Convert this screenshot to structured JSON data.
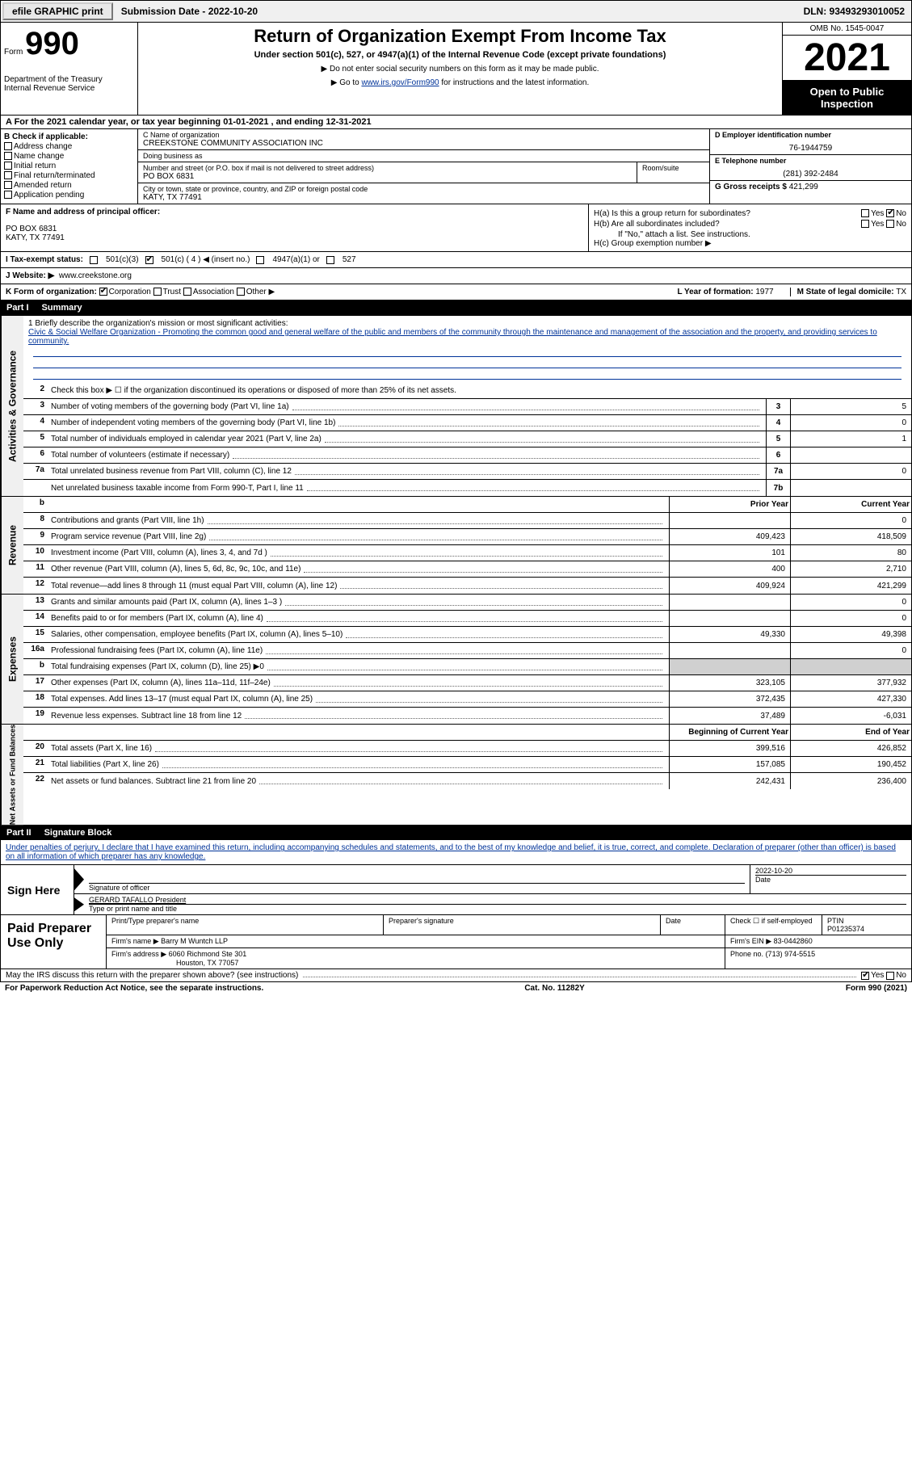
{
  "topbar": {
    "efile": "efile GRAPHIC print",
    "sub_date_label": "Submission Date - 2022-10-20",
    "dln": "DLN: 93493293010052"
  },
  "header": {
    "form_word": "Form",
    "form_num": "990",
    "dept": "Department of the Treasury\nInternal Revenue Service",
    "title": "Return of Organization Exempt From Income Tax",
    "subtitle": "Under section 501(c), 527, or 4947(a)(1) of the Internal Revenue Code (except private foundations)",
    "note1": "▶ Do not enter social security numbers on this form as it may be made public.",
    "note2_prefix": "▶ Go to ",
    "note2_link": "www.irs.gov/Form990",
    "note2_suffix": " for instructions and the latest information.",
    "omb": "OMB No. 1545-0047",
    "year": "2021",
    "open_public": "Open to Public Inspection"
  },
  "row_a": "A For the 2021 calendar year, or tax year beginning 01-01-2021    , and ending 12-31-2021",
  "section_b": {
    "label": "B Check if applicable:",
    "opts": [
      "Address change",
      "Name change",
      "Initial return",
      "Final return/terminated",
      "Amended return",
      "Application pending"
    ]
  },
  "section_c": {
    "name_label": "C Name of organization",
    "name": "CREEKSTONE COMMUNITY ASSOCIATION INC",
    "dba_label": "Doing business as",
    "dba": "",
    "street_label": "Number and street (or P.O. box if mail is not delivered to street address)",
    "street": "PO BOX 6831",
    "room_label": "Room/suite",
    "city_label": "City or town, state or province, country, and ZIP or foreign postal code",
    "city": "KATY, TX  77491"
  },
  "section_d": {
    "label": "D Employer identification number",
    "value": "76-1944759"
  },
  "section_e": {
    "label": "E Telephone number",
    "value": "(281) 392-2484"
  },
  "section_g": {
    "label": "G Gross receipts $",
    "value": "421,299"
  },
  "section_f": {
    "label": "F  Name and address of principal officer:",
    "line1": "PO BOX 6831",
    "line2": "KATY, TX  77491"
  },
  "section_h": {
    "ha": "H(a)  Is this a group return for subordinates?",
    "hb": "H(b)  Are all subordinates included?",
    "hb_note": "If \"No,\" attach a list. See instructions.",
    "hc": "H(c)  Group exemption number ▶",
    "yes": "Yes",
    "no": "No"
  },
  "row_i": {
    "label": "I   Tax-exempt status:",
    "o1": "501(c)(3)",
    "o2": "501(c) ( 4 ) ◀ (insert no.)",
    "o3": "4947(a)(1) or",
    "o4": "527"
  },
  "row_j": {
    "label": "J  Website: ▶",
    "value": "www.creekstone.org"
  },
  "row_k": {
    "label": "K Form of organization:",
    "opts": [
      "Corporation",
      "Trust",
      "Association",
      "Other ▶"
    ],
    "l_label": "L Year of formation:",
    "l_val": "1977",
    "m_label": "M State of legal domicile:",
    "m_val": "TX"
  },
  "part1": {
    "header_num": "Part I",
    "header_title": "Summary",
    "line1_label": "1   Briefly describe the organization's mission or most significant activities:",
    "line1_text": "Civic & Social Welfare Organization - Promoting the common good and general welfare of the public and members of the community through the maintenance and management of the association and the property, and providing services to community.",
    "line2": "Check this box ▶ ☐  if the organization discontinued its operations or disposed of more than 25% of its net assets.",
    "rows_ag": [
      {
        "n": "3",
        "d": "Number of voting members of the governing body (Part VI, line 1a)",
        "box": "3",
        "v": "5"
      },
      {
        "n": "4",
        "d": "Number of independent voting members of the governing body (Part VI, line 1b)",
        "box": "4",
        "v": "0"
      },
      {
        "n": "5",
        "d": "Total number of individuals employed in calendar year 2021 (Part V, line 2a)",
        "box": "5",
        "v": "1"
      },
      {
        "n": "6",
        "d": "Total number of volunteers (estimate if necessary)",
        "box": "6",
        "v": ""
      },
      {
        "n": "7a",
        "d": "Total unrelated business revenue from Part VIII, column (C), line 12",
        "box": "7a",
        "v": "0"
      },
      {
        "n": "",
        "d": "Net unrelated business taxable income from Form 990-T, Part I, line 11",
        "box": "7b",
        "v": ""
      }
    ],
    "col_prior": "Prior Year",
    "col_current": "Current Year",
    "rows_rev": [
      {
        "n": "8",
        "d": "Contributions and grants (Part VIII, line 1h)",
        "p": "",
        "c": "0"
      },
      {
        "n": "9",
        "d": "Program service revenue (Part VIII, line 2g)",
        "p": "409,423",
        "c": "418,509"
      },
      {
        "n": "10",
        "d": "Investment income (Part VIII, column (A), lines 3, 4, and 7d )",
        "p": "101",
        "c": "80"
      },
      {
        "n": "11",
        "d": "Other revenue (Part VIII, column (A), lines 5, 6d, 8c, 9c, 10c, and 11e)",
        "p": "400",
        "c": "2,710"
      },
      {
        "n": "12",
        "d": "Total revenue—add lines 8 through 11 (must equal Part VIII, column (A), line 12)",
        "p": "409,924",
        "c": "421,299"
      }
    ],
    "rows_exp": [
      {
        "n": "13",
        "d": "Grants and similar amounts paid (Part IX, column (A), lines 1–3 )",
        "p": "",
        "c": "0"
      },
      {
        "n": "14",
        "d": "Benefits paid to or for members (Part IX, column (A), line 4)",
        "p": "",
        "c": "0"
      },
      {
        "n": "15",
        "d": "Salaries, other compensation, employee benefits (Part IX, column (A), lines 5–10)",
        "p": "49,330",
        "c": "49,398"
      },
      {
        "n": "16a",
        "d": "Professional fundraising fees (Part IX, column (A), line 11e)",
        "p": "",
        "c": "0"
      },
      {
        "n": "b",
        "d": "Total fundraising expenses (Part IX, column (D), line 25) ▶0",
        "p": "shaded",
        "c": "shaded"
      },
      {
        "n": "17",
        "d": "Other expenses (Part IX, column (A), lines 11a–11d, 11f–24e)",
        "p": "323,105",
        "c": "377,932"
      },
      {
        "n": "18",
        "d": "Total expenses. Add lines 13–17 (must equal Part IX, column (A), line 25)",
        "p": "372,435",
        "c": "427,330"
      },
      {
        "n": "19",
        "d": "Revenue less expenses. Subtract line 18 from line 12",
        "p": "37,489",
        "c": "-6,031"
      }
    ],
    "col_begin": "Beginning of Current Year",
    "col_end": "End of Year",
    "rows_net": [
      {
        "n": "20",
        "d": "Total assets (Part X, line 16)",
        "p": "399,516",
        "c": "426,852"
      },
      {
        "n": "21",
        "d": "Total liabilities (Part X, line 26)",
        "p": "157,085",
        "c": "190,452"
      },
      {
        "n": "22",
        "d": "Net assets or fund balances. Subtract line 21 from line 20",
        "p": "242,431",
        "c": "236,400"
      }
    ]
  },
  "side_tabs": {
    "ag": "Activities & Governance",
    "rev": "Revenue",
    "exp": "Expenses",
    "net": "Net Assets or Fund Balances"
  },
  "part2": {
    "header_num": "Part II",
    "header_title": "Signature Block",
    "declaration": "Under penalties of perjury, I declare that I have examined this return, including accompanying schedules and statements, and to the best of my knowledge and belief, it is true, correct, and complete. Declaration of preparer (other than officer) is based on all information of which preparer has any knowledge.",
    "sign_here": "Sign Here",
    "sig_officer": "Signature of officer",
    "sig_date": "2022-10-20",
    "date_label": "Date",
    "officer_name": "GERARD TAFALLO  President",
    "type_name": "Type or print name and title",
    "paid_prep": "Paid Preparer Use Only",
    "print_name_label": "Print/Type preparer's name",
    "prep_sig_label": "Preparer's signature",
    "check_self": "Check ☐ if self-employed",
    "ptin_label": "PTIN",
    "ptin": "P01235374",
    "firm_name_label": "Firm's name    ▶",
    "firm_name": "Barry M Wuntch LLP",
    "firm_ein_label": "Firm's EIN ▶",
    "firm_ein": "83-0442860",
    "firm_addr_label": "Firm's address ▶",
    "firm_addr1": "6060 Richmond Ste 301",
    "firm_addr2": "Houston, TX  77057",
    "phone_label": "Phone no.",
    "phone": "(713) 974-5515"
  },
  "footer": {
    "discuss": "May the IRS discuss this return with the preparer shown above? (see instructions)",
    "yes": "Yes",
    "no": "No",
    "paperwork": "For Paperwork Reduction Act Notice, see the separate instructions.",
    "cat": "Cat. No. 11282Y",
    "form": "Form 990 (2021)"
  }
}
